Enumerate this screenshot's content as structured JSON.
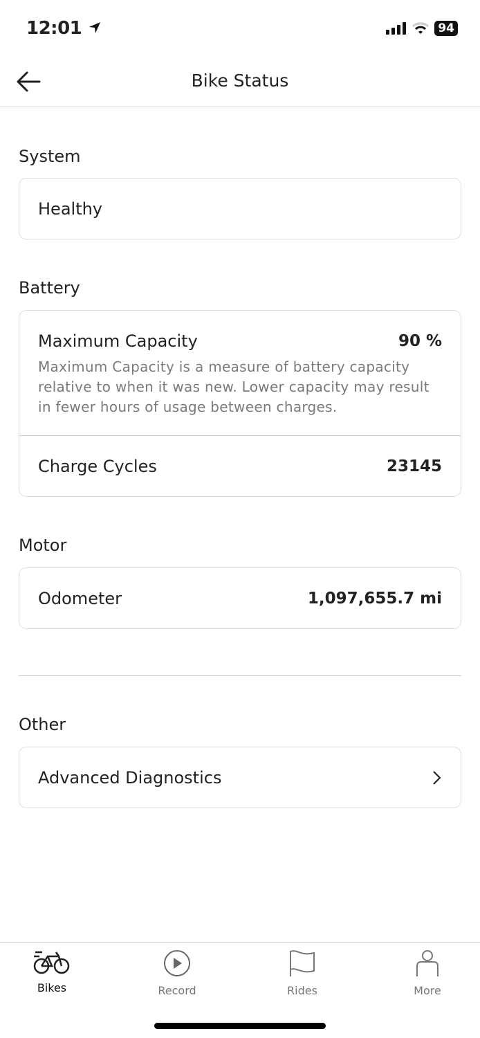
{
  "status_bar": {
    "time": "12:01",
    "battery": "94"
  },
  "header": {
    "title": "Bike Status"
  },
  "system": {
    "label": "System",
    "status": "Healthy"
  },
  "battery": {
    "label": "Battery",
    "max_capacity_label": "Maximum Capacity",
    "max_capacity_value": "90 %",
    "description": "Maximum Capacity is a measure of battery capacity relative to when it was new. Lower capacity may result in fewer hours of usage between charges.",
    "charge_cycles_label": "Charge Cycles",
    "charge_cycles_value": "23145"
  },
  "motor": {
    "label": "Motor",
    "odometer_label": "Odometer",
    "odometer_value": "1,097,655.7 mi"
  },
  "other": {
    "label": "Other",
    "advanced_label": "Advanced Diagnostics"
  },
  "tabs": [
    {
      "label": "Bikes",
      "icon": "bike-icon",
      "active": true
    },
    {
      "label": "Record",
      "icon": "play-icon"
    },
    {
      "label": "Rides",
      "icon": "flag-icon"
    },
    {
      "label": "More",
      "icon": "person-icon"
    }
  ]
}
